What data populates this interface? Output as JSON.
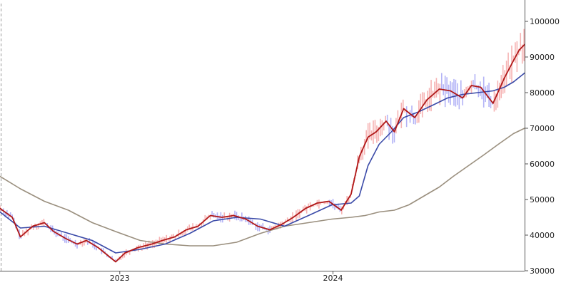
{
  "chart_data": {
    "type": "line",
    "title": "",
    "xlabel": "",
    "ylabel": "",
    "ylim": [
      30000,
      105000
    ],
    "x_range": [
      "2022-06-10",
      "2024-11-24"
    ],
    "x_ticks": [
      {
        "label": "2023",
        "date": "2023-01-01"
      },
      {
        "label": "2024",
        "date": "2024-01-01"
      }
    ],
    "y_ticks": [
      30000,
      40000,
      50000,
      60000,
      70000,
      80000,
      90000,
      100000
    ],
    "y_tick_labels": [
      "30000",
      "40000",
      "50000",
      "60000",
      "70000",
      "80000",
      "90000",
      "100000"
    ],
    "axis_position": "right",
    "grid": false,
    "legend": "none",
    "colors": {
      "up_bars": "#f4a6a6",
      "down_bars": "#a6a6f4",
      "fast_line": "#b01818",
      "mid_line": "#3a4aa8",
      "slow_line": "#9a8f7e",
      "axis": "#555555",
      "left_marker": "#999999"
    },
    "series": [
      {
        "x": [
          "2022-06-10",
          "2022-07-01",
          "2022-07-15",
          "2022-08-05",
          "2022-08-25",
          "2022-09-10",
          "2022-10-01",
          "2022-10-20",
          "2022-11-05",
          "2022-11-25",
          "2022-12-10",
          "2022-12-25",
          "2023-01-10",
          "2023-02-01",
          "2023-02-25",
          "2023-03-15",
          "2023-04-05",
          "2023-04-25",
          "2023-05-15",
          "2023-06-05",
          "2023-06-25",
          "2023-07-15",
          "2023-08-05",
          "2023-08-25",
          "2023-09-15",
          "2023-10-05",
          "2023-10-25",
          "2023-11-15",
          "2023-12-05",
          "2023-12-25",
          "2024-01-15",
          "2024-02-01",
          "2024-02-15",
          "2024-03-01",
          "2024-03-15",
          "2024-04-01",
          "2024-04-15",
          "2024-05-01",
          "2024-05-20",
          "2024-06-10",
          "2024-07-01",
          "2024-07-20",
          "2024-08-10",
          "2024-08-25",
          "2024-09-10",
          "2024-10-01",
          "2024-10-20",
          "2024-11-05",
          "2024-11-15",
          "2024-11-24"
        ],
        "values": [
          47500,
          45000,
          39500,
          42500,
          43500,
          41000,
          39000,
          37500,
          38500,
          36500,
          34500,
          32500,
          35000,
          36500,
          37500,
          38500,
          39500,
          41500,
          42500,
          45500,
          45000,
          45500,
          44500,
          42500,
          41500,
          43000,
          45000,
          47500,
          49000,
          49500,
          47000,
          51500,
          62000,
          67500,
          69000,
          72000,
          69000,
          75500,
          73000,
          78000,
          81000,
          80500,
          78500,
          82000,
          81500,
          77000,
          84000,
          89000,
          92000,
          93500
        ]
      },
      {
        "x": [
          "2022-06-10",
          "2022-07-15",
          "2022-08-25",
          "2022-10-05",
          "2022-11-15",
          "2022-12-25",
          "2023-02-05",
          "2023-03-20",
          "2023-05-01",
          "2023-06-10",
          "2023-07-20",
          "2023-08-30",
          "2023-10-10",
          "2023-11-20",
          "2023-12-30",
          "2024-02-01",
          "2024-02-15",
          "2024-03-01",
          "2024-03-20",
          "2024-04-10",
          "2024-05-01",
          "2024-05-25",
          "2024-06-20",
          "2024-07-15",
          "2024-08-10",
          "2024-09-05",
          "2024-10-01",
          "2024-10-20",
          "2024-11-05",
          "2024-11-24"
        ],
        "values": [
          46500,
          42000,
          42500,
          40500,
          38500,
          35000,
          36000,
          37500,
          40500,
          44000,
          45000,
          44500,
          42500,
          45500,
          48500,
          49000,
          51000,
          59500,
          65500,
          69000,
          73000,
          74500,
          76500,
          78500,
          79500,
          80000,
          80500,
          81500,
          83000,
          85500
        ]
      },
      {
        "x": [
          "2022-06-10",
          "2022-07-15",
          "2022-08-25",
          "2022-10-05",
          "2022-11-15",
          "2022-12-25",
          "2023-02-05",
          "2023-03-20",
          "2023-05-01",
          "2023-06-10",
          "2023-07-20",
          "2023-08-30",
          "2023-10-10",
          "2023-11-20",
          "2023-12-30",
          "2024-02-01",
          "2024-02-25",
          "2024-03-20",
          "2024-04-15",
          "2024-05-10",
          "2024-06-05",
          "2024-07-01",
          "2024-07-25",
          "2024-08-20",
          "2024-09-15",
          "2024-10-10",
          "2024-11-05",
          "2024-11-24"
        ],
        "values": [
          56500,
          53000,
          49500,
          47000,
          43500,
          41000,
          38500,
          37500,
          37000,
          37000,
          38000,
          40500,
          42500,
          43500,
          44500,
          45000,
          45500,
          46500,
          47000,
          48500,
          51000,
          53500,
          56500,
          59500,
          62500,
          65500,
          68500,
          70000
        ]
      }
    ]
  }
}
